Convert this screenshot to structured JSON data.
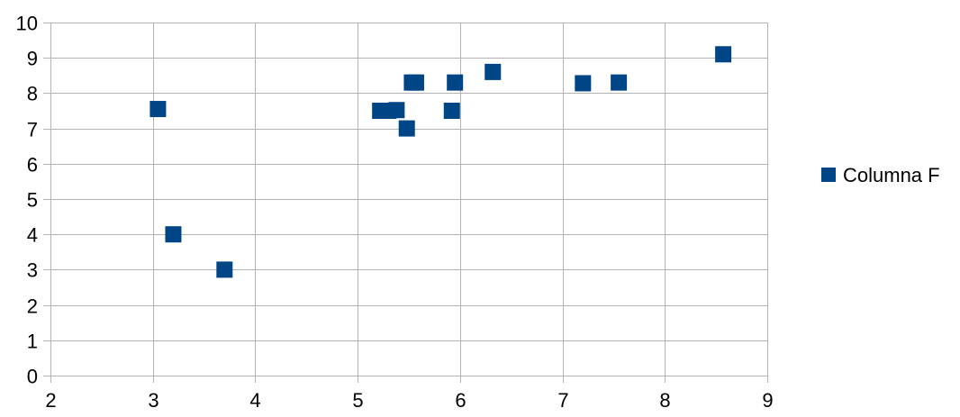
{
  "chart_data": {
    "type": "scatter",
    "title": "",
    "xlabel": "",
    "ylabel": "",
    "xlim": [
      2,
      9
    ],
    "ylim": [
      0,
      10
    ],
    "x_ticks": [
      2,
      3,
      4,
      5,
      6,
      7,
      8,
      9
    ],
    "y_ticks": [
      0,
      1,
      2,
      3,
      4,
      5,
      6,
      7,
      8,
      9,
      10
    ],
    "grid": true,
    "legend_position": "right",
    "marker": "square",
    "series": [
      {
        "name": "Columna F",
        "color": "#004586",
        "points": [
          {
            "x": 3.05,
            "y": 7.55
          },
          {
            "x": 3.2,
            "y": 4.0
          },
          {
            "x": 3.7,
            "y": 3.0
          },
          {
            "x": 5.22,
            "y": 7.5
          },
          {
            "x": 5.3,
            "y": 7.5
          },
          {
            "x": 5.38,
            "y": 7.52
          },
          {
            "x": 5.48,
            "y": 7.0
          },
          {
            "x": 5.53,
            "y": 8.3
          },
          {
            "x": 5.57,
            "y": 8.3
          },
          {
            "x": 5.92,
            "y": 7.5
          },
          {
            "x": 5.95,
            "y": 8.3
          },
          {
            "x": 6.32,
            "y": 8.6
          },
          {
            "x": 7.2,
            "y": 8.28
          },
          {
            "x": 7.55,
            "y": 8.3
          },
          {
            "x": 8.57,
            "y": 9.1
          }
        ]
      }
    ]
  }
}
